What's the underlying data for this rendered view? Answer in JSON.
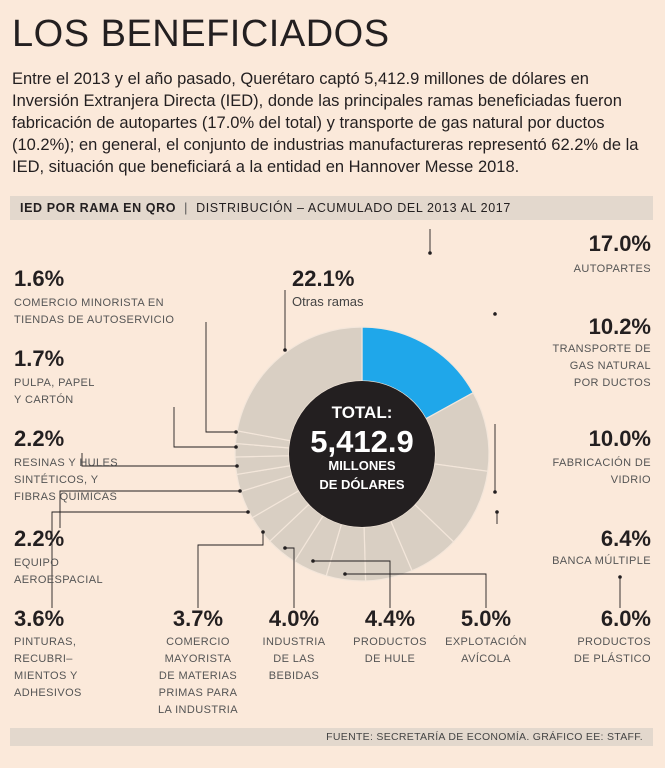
{
  "header": {
    "title": "LOS BENEFICIADOS",
    "lead": "Entre el 2013 y el año pasado, Querétaro captó 5,412.9 millones de dólares en Inversión Extranjera Directa (IED), donde las principales ramas beneficiadas fueron fabricación de autopartes (17.0% del total) y transporte de gas natural por ductos (10.2%); en general, el conjunto de industrias manufactureras representó 62.2% de la IED, situación que beneficiará a la entidad en Hannover Messe 2018."
  },
  "section": {
    "bold": "IED POR RAMA EN QRO",
    "separator": "|",
    "rest": "DISTRIBUCIÓN – ACUMULADO DEL 2013 AL 2017"
  },
  "footer": "FUENTE: SECRETARÍA DE ECONOMÍA.   GRÁFICO EE: STAFF.",
  "colors": {
    "background": "#fbe9da",
    "highlight": "#1fa7ea",
    "slice": "#d9cfc3",
    "center": "#231f20",
    "leader": "#231f20"
  },
  "chart_data": {
    "type": "pie",
    "variant": "donut",
    "center_label": {
      "line1": "TOTAL:",
      "line2": "5,412.9",
      "line3": "MILLONES",
      "line4": "DE DÓLARES"
    },
    "slices": [
      {
        "value": 17.0,
        "pct_text": "17.0%",
        "label": "AUTOPARTES",
        "highlight": true
      },
      {
        "value": 10.2,
        "pct_text": "10.2%",
        "label": "TRANSPORTE DE GAS NATURAL POR DUCTOS"
      },
      {
        "value": 10.0,
        "pct_text": "10.0%",
        "label": "FABRICACIÓN DE VIDRIO"
      },
      {
        "value": 6.4,
        "pct_text": "6.4%",
        "label": "BANCA MÚLTIPLE"
      },
      {
        "value": 6.0,
        "pct_text": "6.0%",
        "label": "PRODUCTOS DE PLÁSTICO"
      },
      {
        "value": 5.0,
        "pct_text": "5.0%",
        "label": "EXPLOTACIÓN AVÍCOLA"
      },
      {
        "value": 4.4,
        "pct_text": "4.4%",
        "label": "PRODUCTOS DE HULE"
      },
      {
        "value": 4.0,
        "pct_text": "4.0%",
        "label": "INDUSTRIA DE LAS BEBIDAS"
      },
      {
        "value": 3.7,
        "pct_text": "3.7%",
        "label": "COMERCIO MAYORISTA DE MATERIAS PRIMAS PARA LA INDUSTRIA"
      },
      {
        "value": 3.6,
        "pct_text": "3.6%",
        "label": "PINTURAS, RECUBRI- MIENTOS Y ADHESIVOS"
      },
      {
        "value": 2.2,
        "pct_text": "2.2%",
        "label": "EQUIPO AEROESPACIAL"
      },
      {
        "value": 2.2,
        "pct_text": "2.2%",
        "label": "RESINAS Y HULES SINTÉTICOS, Y FIBRAS QUÍMICAS"
      },
      {
        "value": 1.7,
        "pct_text": "1.7%",
        "label": "PULPA, PAPEL Y CARTÓN"
      },
      {
        "value": 1.6,
        "pct_text": "1.6%",
        "label": "COMERCIO MINORISTA EN TIENDAS DE AUTOSERVICIO"
      },
      {
        "value": 22.1,
        "pct_text": "22.1%",
        "label": "Otras ramas"
      }
    ]
  }
}
